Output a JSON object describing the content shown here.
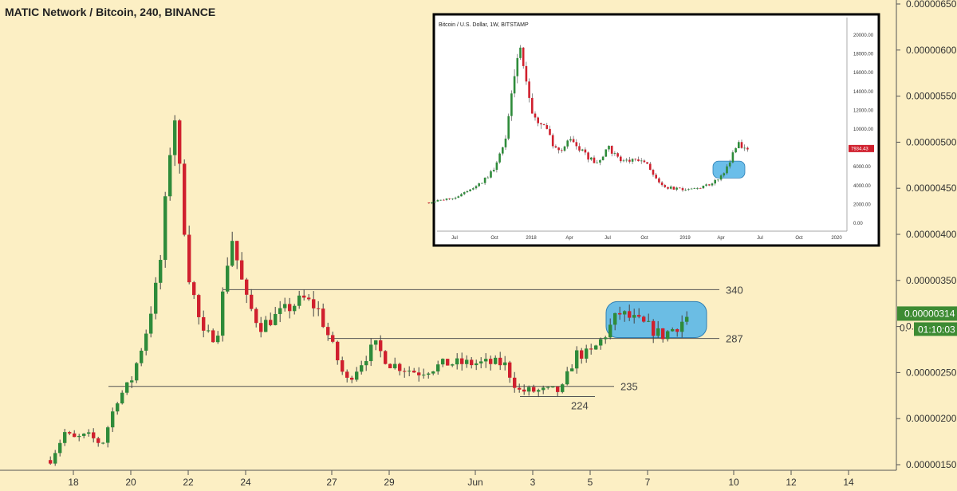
{
  "chart_data": [
    {
      "type": "candlestick",
      "title": "MATIC Network / Bitcoin, 240, BINANCE",
      "x_ticks": [
        "18",
        "20",
        "22",
        "24",
        "27",
        "29",
        "Jun",
        "3",
        "5",
        "7",
        "10",
        "12",
        "14"
      ],
      "y_ticks": [
        "0.00000650",
        "0.00000600",
        "0.00000550",
        "0.00000500",
        "0.00000450",
        "0.00000400",
        "0.00000350",
        "0.00000300",
        "0.00000250",
        "0.00000200",
        "0.00000150"
      ],
      "ylim": [
        1.5e-06,
        6.5e-06
      ],
      "grid": false,
      "colors": {
        "up": "#2e8b3a",
        "down": "#d0202e",
        "background": "#fcefc4",
        "highlight": "#5bb7e8",
        "price_badge": "#3d8b33"
      },
      "last_price": "0.00000314",
      "countdown": "01:10:03",
      "partial_tick": "0.",
      "levels": [
        {
          "label": "340",
          "value": 3.4e-06
        },
        {
          "label": "287",
          "value": 2.87e-06
        },
        {
          "label": "235",
          "value": 2.35e-06
        },
        {
          "label": "224",
          "value": 2.24e-06
        }
      ],
      "anchors": [
        {
          "x": "17 00:00",
          "close": 1.55e-06
        },
        {
          "x": "17 12:00",
          "close": 1.85e-06
        },
        {
          "x": "18 00:00",
          "close": 1.78e-06
        },
        {
          "x": "18 12:00",
          "close": 1.82e-06
        },
        {
          "x": "19 00:00",
          "close": 1.72e-06
        },
        {
          "x": "19 12:00",
          "close": 2.2e-06
        },
        {
          "x": "20 00:00",
          "close": 2.4e-06
        },
        {
          "x": "20 12:00",
          "close": 2.9e-06
        },
        {
          "x": "21 00:00",
          "close": 3.6e-06
        },
        {
          "x": "21 12:00",
          "close": 5.4e-06
        },
        {
          "x": "22 00:00",
          "close": 3.6e-06
        },
        {
          "x": "22 12:00",
          "close": 2.9e-06
        },
        {
          "x": "23 00:00",
          "close": 2.9e-06
        },
        {
          "x": "23 12:00",
          "close": 4e-06
        },
        {
          "x": "24 00:00",
          "close": 3.3e-06
        },
        {
          "x": "24 12:00",
          "close": 3e-06
        },
        {
          "x": "25 00:00",
          "close": 3.1e-06
        },
        {
          "x": "25 12:00",
          "close": 3.2e-06
        },
        {
          "x": "26 00:00",
          "close": 3.3e-06
        },
        {
          "x": "26 12:00",
          "close": 3.2e-06
        },
        {
          "x": "27 00:00",
          "close": 2.8e-06
        },
        {
          "x": "27 12:00",
          "close": 2.4e-06
        },
        {
          "x": "28 00:00",
          "close": 2.6e-06
        },
        {
          "x": "28 12:00",
          "close": 2.8e-06
        },
        {
          "x": "29 00:00",
          "close": 2.6e-06
        },
        {
          "x": "30 00:00",
          "close": 2.5e-06
        },
        {
          "x": "31 00:00",
          "close": 2.6e-06
        },
        {
          "x": "Jun 00:00",
          "close": 2.6e-06
        },
        {
          "x": "2 00:00",
          "close": 2.6e-06
        },
        {
          "x": "2 12:00",
          "close": 2.3e-06
        },
        {
          "x": "3 00:00",
          "close": 2.3e-06
        },
        {
          "x": "4 00:00",
          "close": 2.3e-06
        },
        {
          "x": "4 12:00",
          "close": 2.7e-06
        },
        {
          "x": "5 00:00",
          "close": 2.7e-06
        },
        {
          "x": "5 12:00",
          "close": 2.9e-06
        },
        {
          "x": "6 00:00",
          "close": 3.15e-06
        },
        {
          "x": "7 00:00",
          "close": 3e-06
        },
        {
          "x": "7 12:00",
          "close": 2.9e-06
        },
        {
          "x": "8 00:00",
          "close": 3e-06
        },
        {
          "x": "8 12:00",
          "close": 3.14e-06
        }
      ]
    },
    {
      "type": "candlestick",
      "title": "Bitcoin / U.S. Dollar, 1W, BITSTAMP",
      "x_ticks": [
        "Jul",
        "Oct",
        "2018",
        "Apr",
        "Jul",
        "Oct",
        "2019",
        "Apr",
        "Jul",
        "Oct",
        "2020"
      ],
      "y_ticks": [
        "20000.00",
        "18000.00",
        "16000.00",
        "14000.00",
        "12000.00",
        "10000.00",
        "8000.00",
        "6000.00",
        "4000.00",
        "2000.00",
        "0.00"
      ],
      "ylim": [
        0,
        20000
      ],
      "last_price": "7934.43",
      "anchors": [
        {
          "x": "2017-05",
          "close": 2200
        },
        {
          "x": "2017-07",
          "close": 2700
        },
        {
          "x": "2017-09",
          "close": 4200
        },
        {
          "x": "2017-10",
          "close": 5600
        },
        {
          "x": "2017-11",
          "close": 9000
        },
        {
          "x": "2017-12",
          "close": 19000
        },
        {
          "x": "2018-01",
          "close": 11500
        },
        {
          "x": "2018-02",
          "close": 10300
        },
        {
          "x": "2018-03",
          "close": 7500
        },
        {
          "x": "2018-04",
          "close": 9000
        },
        {
          "x": "2018-05",
          "close": 7500
        },
        {
          "x": "2018-06",
          "close": 6300
        },
        {
          "x": "2018-07",
          "close": 8000
        },
        {
          "x": "2018-08",
          "close": 6600
        },
        {
          "x": "2018-09",
          "close": 6600
        },
        {
          "x": "2018-10",
          "close": 6400
        },
        {
          "x": "2018-11",
          "close": 4000
        },
        {
          "x": "2018-12",
          "close": 3700
        },
        {
          "x": "2019-01",
          "close": 3500
        },
        {
          "x": "2019-02",
          "close": 3800
        },
        {
          "x": "2019-03",
          "close": 4100
        },
        {
          "x": "2019-04",
          "close": 5300
        },
        {
          "x": "2019-05",
          "close": 8500
        },
        {
          "x": "2019-06",
          "close": 7934
        }
      ]
    }
  ]
}
